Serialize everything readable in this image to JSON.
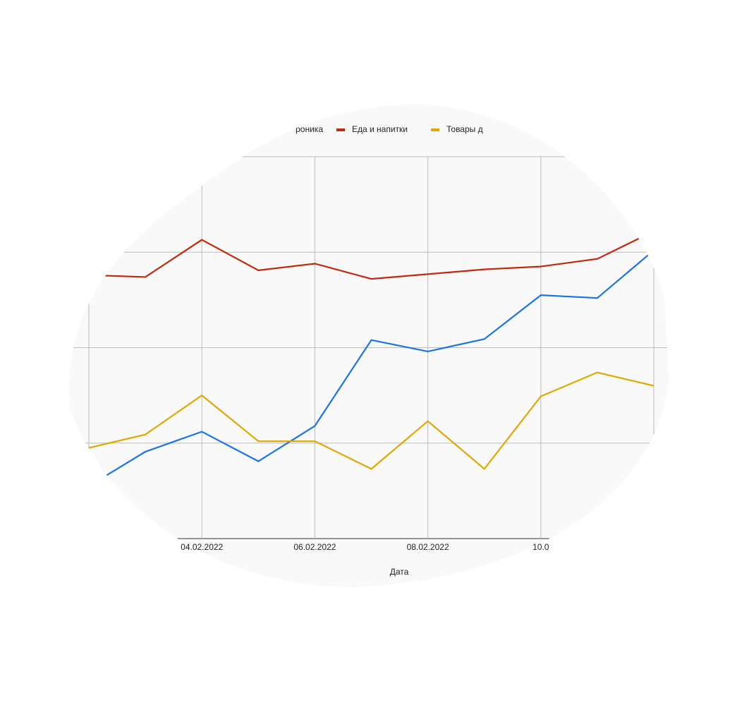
{
  "chart_data": {
    "type": "line",
    "x_label": "Дата",
    "categories": [
      null,
      null,
      "04.02.2022",
      null,
      "06.02.2022",
      null,
      "08.02.2022",
      null,
      "10.0",
      null,
      null
    ],
    "ylim": [
      0,
      4
    ],
    "ygrid": [
      0,
      1,
      2,
      3,
      4
    ],
    "grid": true,
    "series": [
      {
        "name": "роника",
        "color": "#1a73e8",
        "values": [
          0.55,
          0.91,
          1.12,
          0.81,
          1.18,
          2.08,
          1.96,
          2.09,
          2.55,
          2.52,
          3.02
        ]
      },
      {
        "name": "Еда и напитки",
        "color": "#c5280c",
        "values": [
          2.76,
          2.74,
          3.13,
          2.81,
          2.88,
          2.72,
          2.77,
          2.82,
          2.85,
          2.93,
          3.22
        ]
      },
      {
        "name": "Товары д",
        "color": "#e0a800",
        "values": [
          0.95,
          1.09,
          1.5,
          1.02,
          1.02,
          0.73,
          1.23,
          0.73,
          1.49,
          1.74,
          1.6
        ]
      }
    ]
  }
}
